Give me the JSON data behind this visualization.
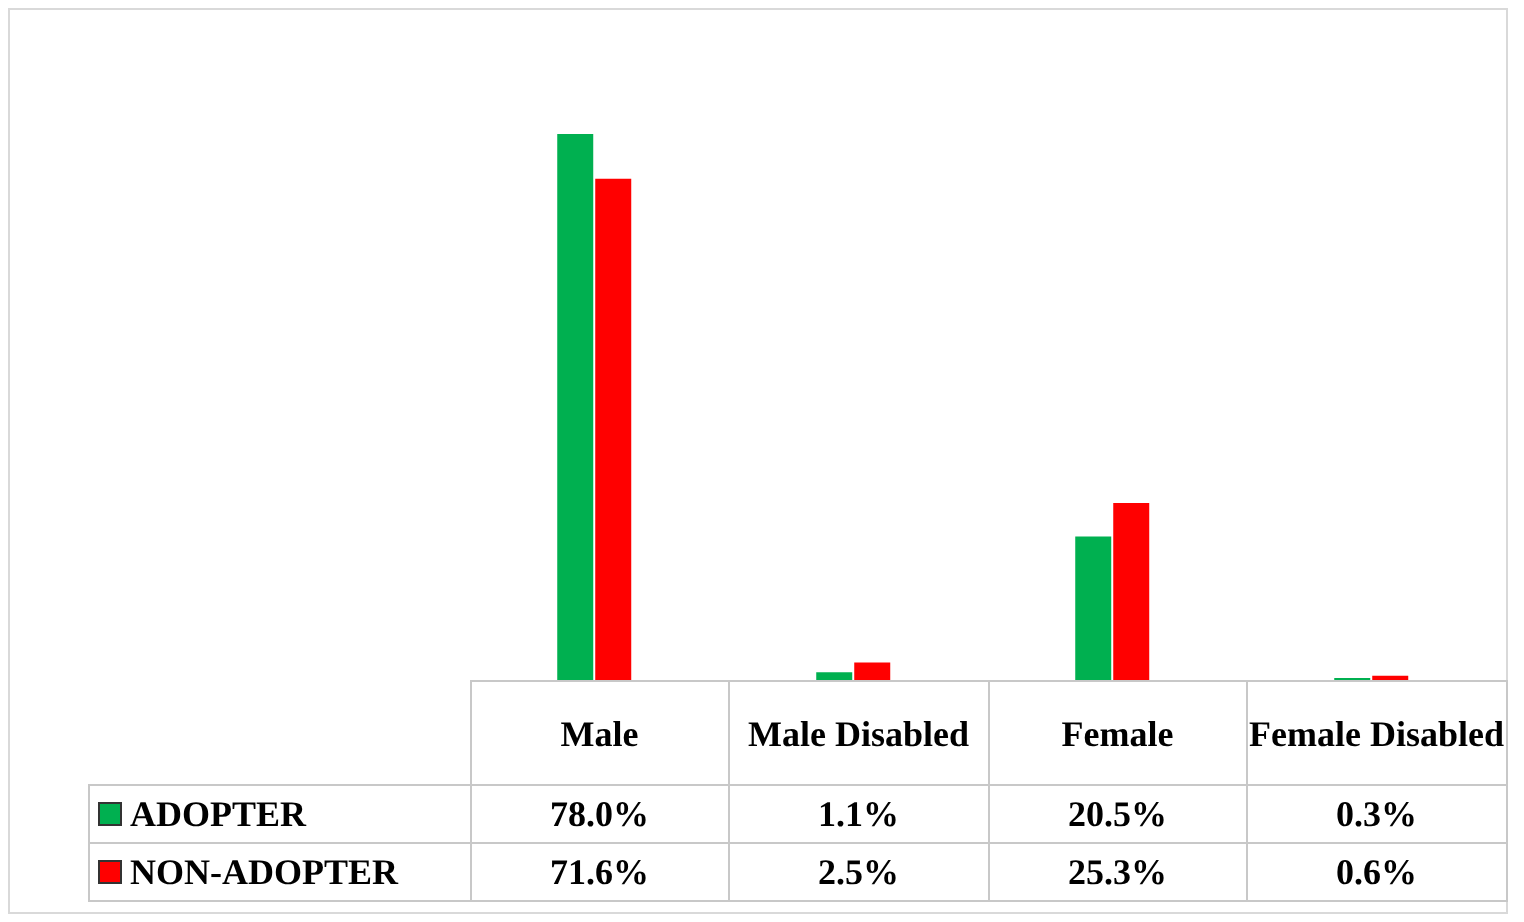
{
  "chart_data": {
    "type": "bar",
    "categories": [
      "Male",
      "Male Disabled",
      "Female",
      "Female Disabled"
    ],
    "series": [
      {
        "name": "ADOPTER",
        "color": "#00b050",
        "values": [
          78.0,
          1.1,
          20.5,
          0.3
        ],
        "value_labels": [
          "78.0%",
          "1.1%",
          "20.5%",
          "0.3%"
        ]
      },
      {
        "name": "NON-ADOPTER",
        "color": "#ff0000",
        "values": [
          71.6,
          2.5,
          25.3,
          0.6
        ],
        "value_labels": [
          "71.6%",
          "2.5%",
          "25.3%",
          "0.6%"
        ]
      }
    ],
    "legend": "bottom left",
    "grid": false
  }
}
